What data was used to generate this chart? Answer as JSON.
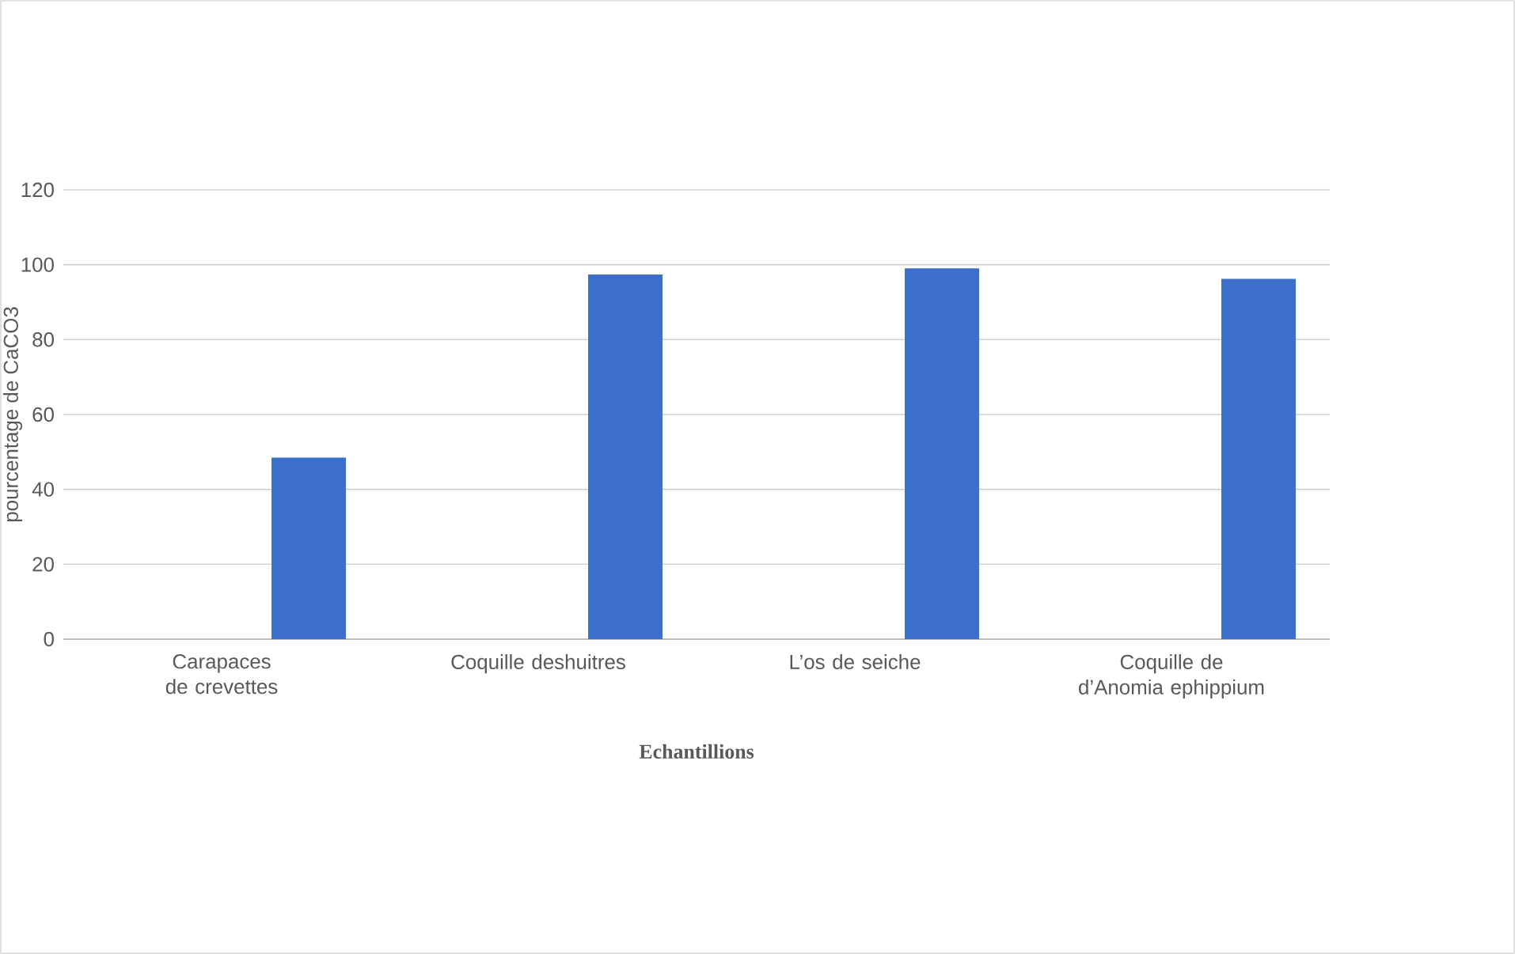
{
  "chart_data": {
    "type": "bar",
    "xlabel": "Echantillions",
    "ylabel": "pourcentage de CaCO3",
    "categories": [
      "Carapaces de crevettes",
      "Coquille deshuitres",
      "L’os de seiche",
      "Coquille de d’Anomia ephippium"
    ],
    "values": [
      48.5,
      97.4,
      99,
      96.2
    ],
    "color": "#3b6fc9",
    "ylim": [
      0,
      120
    ],
    "yticks": [
      0,
      20,
      40,
      60,
      80,
      100,
      120
    ],
    "grid": "y"
  }
}
